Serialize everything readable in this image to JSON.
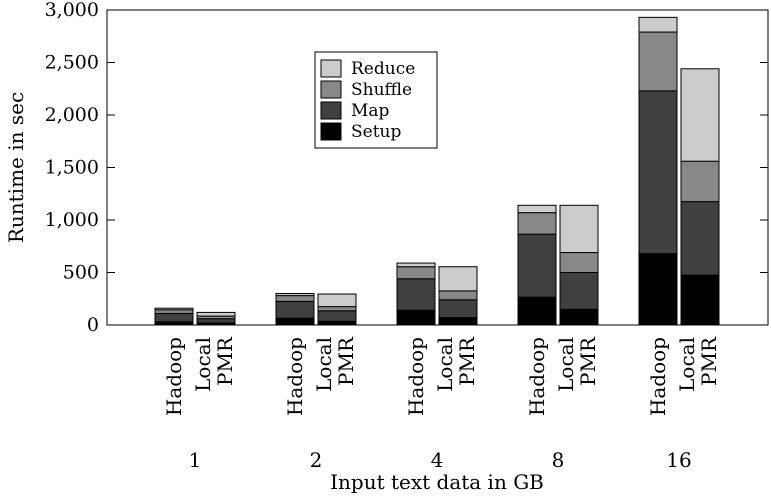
{
  "chart_data": {
    "type": "bar",
    "stacked": true,
    "xlabel": "Input text data in GB",
    "ylabel": "Runtime in sec",
    "ylim": [
      0,
      3000
    ],
    "yticks": [
      0,
      500,
      1000,
      1500,
      2000,
      2500,
      3000
    ],
    "ytick_labels": [
      "0",
      "500",
      "1,000",
      "1,500",
      "2,000",
      "2,500",
      "3,000"
    ],
    "grid": false,
    "legend_position": "top-center",
    "groups": [
      "1",
      "2",
      "4",
      "8",
      "16"
    ],
    "bar_labels": [
      "Hadoop",
      "Local PMR"
    ],
    "series": [
      {
        "name": "Setup",
        "color": "#000000",
        "values": {
          "Hadoop": [
            30,
            65,
            140,
            265,
            680
          ],
          "Local PMR": [
            20,
            35,
            70,
            150,
            475
          ]
        }
      },
      {
        "name": "Map",
        "color": "#404040",
        "values": {
          "Hadoop": [
            80,
            160,
            300,
            600,
            1550
          ],
          "Local PMR": [
            40,
            100,
            170,
            350,
            700
          ]
        }
      },
      {
        "name": "Shuffle",
        "color": "#888888",
        "values": {
          "Hadoop": [
            35,
            55,
            115,
            205,
            560
          ],
          "Local PMR": [
            25,
            40,
            85,
            190,
            385
          ]
        }
      },
      {
        "name": "Reduce",
        "color": "#cccccc",
        "values": {
          "Hadoop": [
            15,
            20,
            35,
            70,
            140
          ],
          "Local PMR": [
            35,
            120,
            230,
            450,
            880
          ]
        }
      }
    ]
  }
}
